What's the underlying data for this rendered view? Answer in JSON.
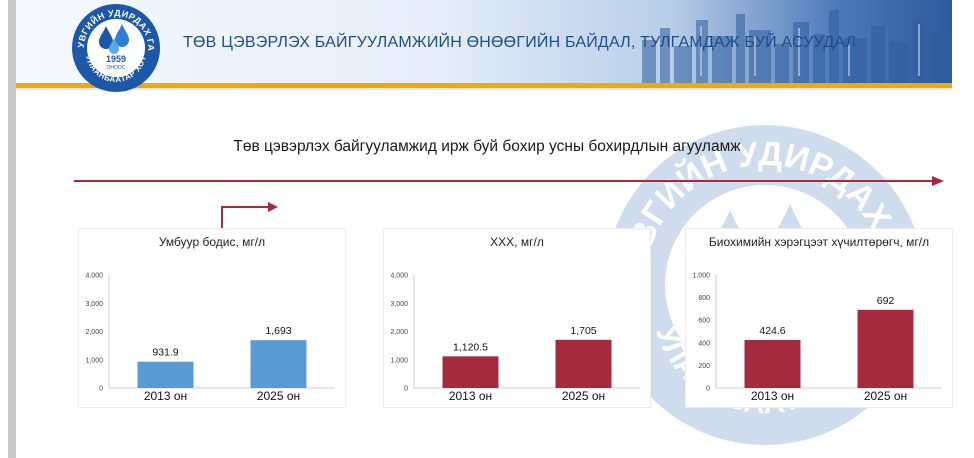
{
  "header": {
    "title": "ТӨВ ЦЭВЭРЛЭХ БАЙГУУЛАМЖИЙН ӨНӨӨГИЙН БАЙДАЛ, ТУЛГАМДАЖ БУЙ АСУУДАЛ",
    "logo": {
      "top_text": "УС СУВГИЙН УДИРДАХ ГАЗАР",
      "bottom_text": "УЛААНБААТАР ХОТ",
      "year": "1959",
      "short": "ОНООС"
    }
  },
  "subtitle": "Төв цэвэрлэх байгууламжид ирж буй бохир усны бохирдлын агууламж",
  "colors": {
    "header_accent": "#f2a900",
    "title_blue": "#1f4e8a",
    "arrow": "#a8283d",
    "bar_blue": "#5b9bd5",
    "bar_red": "#a52a3d"
  },
  "chart_data": [
    {
      "type": "bar",
      "title": "Умбуур бодис, мг/л",
      "categories": [
        "2013 он",
        "2025 он"
      ],
      "values": [
        931.9,
        1693
      ],
      "value_labels": [
        "931.9",
        "1,693"
      ],
      "ylim": [
        0,
        4000
      ],
      "yticks": [
        0,
        1000,
        2000,
        3000,
        4000
      ],
      "ytick_labels": [
        "0",
        "1,000",
        "2,000",
        "3,000",
        "4,000"
      ],
      "color": "#5b9bd5"
    },
    {
      "type": "bar",
      "title": "ХХХ, мг/л",
      "categories": [
        "2013 он",
        "2025 он"
      ],
      "values": [
        1120.5,
        1705
      ],
      "value_labels": [
        "1,120.5",
        "1,705"
      ],
      "ylim": [
        0,
        4000
      ],
      "yticks": [
        0,
        1000,
        2000,
        3000,
        4000
      ],
      "ytick_labels": [
        "0",
        "1,000",
        "2,000",
        "3,000",
        "4,000"
      ],
      "color": "#a52a3d"
    },
    {
      "type": "bar",
      "title": "Биохимийн хэрэгцээт хүчилтөрөгч, мг/л",
      "categories": [
        "2013 он",
        "2025 он"
      ],
      "values": [
        424.6,
        692
      ],
      "value_labels": [
        "424.6",
        "692"
      ],
      "ylim": [
        0,
        1000
      ],
      "yticks": [
        0,
        200,
        400,
        600,
        800,
        1000
      ],
      "ytick_labels": [
        "0",
        "200",
        "400",
        "600",
        "800",
        "1,000"
      ],
      "color": "#a52a3d"
    }
  ]
}
